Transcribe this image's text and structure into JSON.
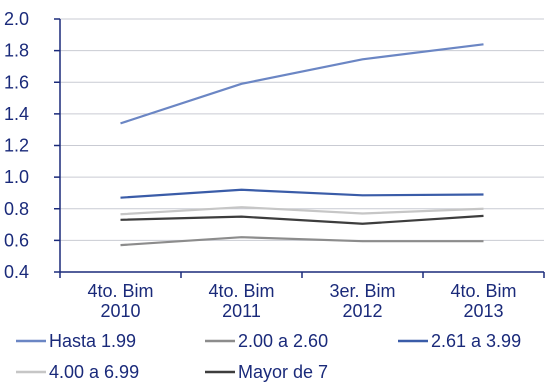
{
  "chart_data": {
    "type": "line",
    "categories": [
      [
        "4to. Bim",
        "2010"
      ],
      [
        "4to. Bim",
        "2011"
      ],
      [
        "3er. Bim",
        "2012"
      ],
      [
        "4to. Bim",
        "2013"
      ]
    ],
    "ylim": [
      0.4,
      2.0
    ],
    "yticks": [
      "0.4",
      "0.6",
      "0.8",
      "1.0",
      "1.2",
      "1.4",
      "1.6",
      "1.8",
      "2.0"
    ],
    "grid": "horizontal",
    "legend_position": "bottom",
    "series": [
      {
        "name": "Hasta 1.99",
        "color": "#6b86c4",
        "values": [
          1.34,
          1.59,
          1.745,
          1.84
        ]
      },
      {
        "name": "2.00 a 2.60",
        "color": "#8c8c8c",
        "values": [
          0.57,
          0.62,
          0.595,
          0.595
        ]
      },
      {
        "name": "2.61 a 3.99",
        "color": "#3a5ca8",
        "values": [
          0.87,
          0.92,
          0.885,
          0.89
        ]
      },
      {
        "name": "4.00 a 6.99",
        "color": "#c6c6c6",
        "values": [
          0.765,
          0.81,
          0.77,
          0.8
        ]
      },
      {
        "name": "Mayor de 7",
        "color": "#3d3d3d",
        "values": [
          0.73,
          0.75,
          0.705,
          0.755
        ]
      }
    ]
  }
}
